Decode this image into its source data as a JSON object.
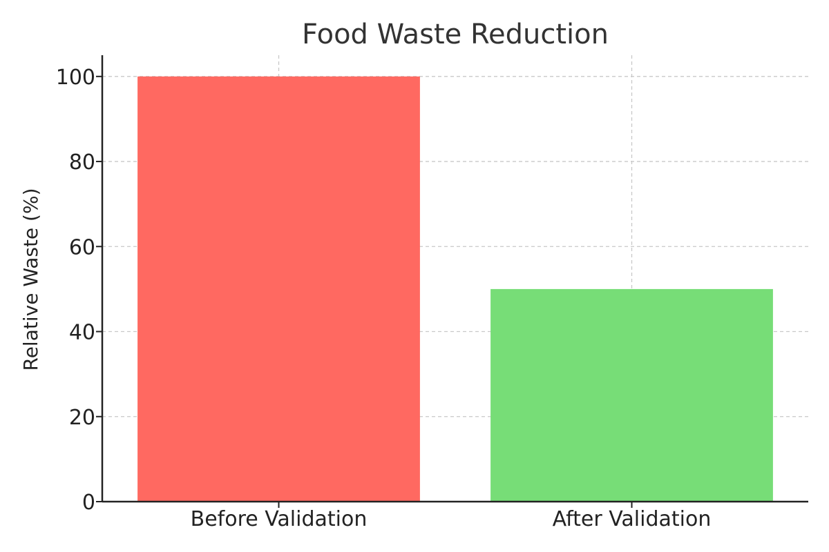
{
  "chart_data": {
    "type": "bar",
    "title": "Food Waste Reduction",
    "xlabel": "",
    "ylabel": "Relative Waste (%)",
    "categories": [
      "Before Validation",
      "After Validation"
    ],
    "values": [
      100,
      50
    ],
    "colors": [
      "#ff6961",
      "#77dd77"
    ],
    "ylim": [
      0,
      105
    ],
    "yticks": [
      0,
      20,
      40,
      60,
      80,
      100
    ],
    "grid": true,
    "legend": "none"
  }
}
